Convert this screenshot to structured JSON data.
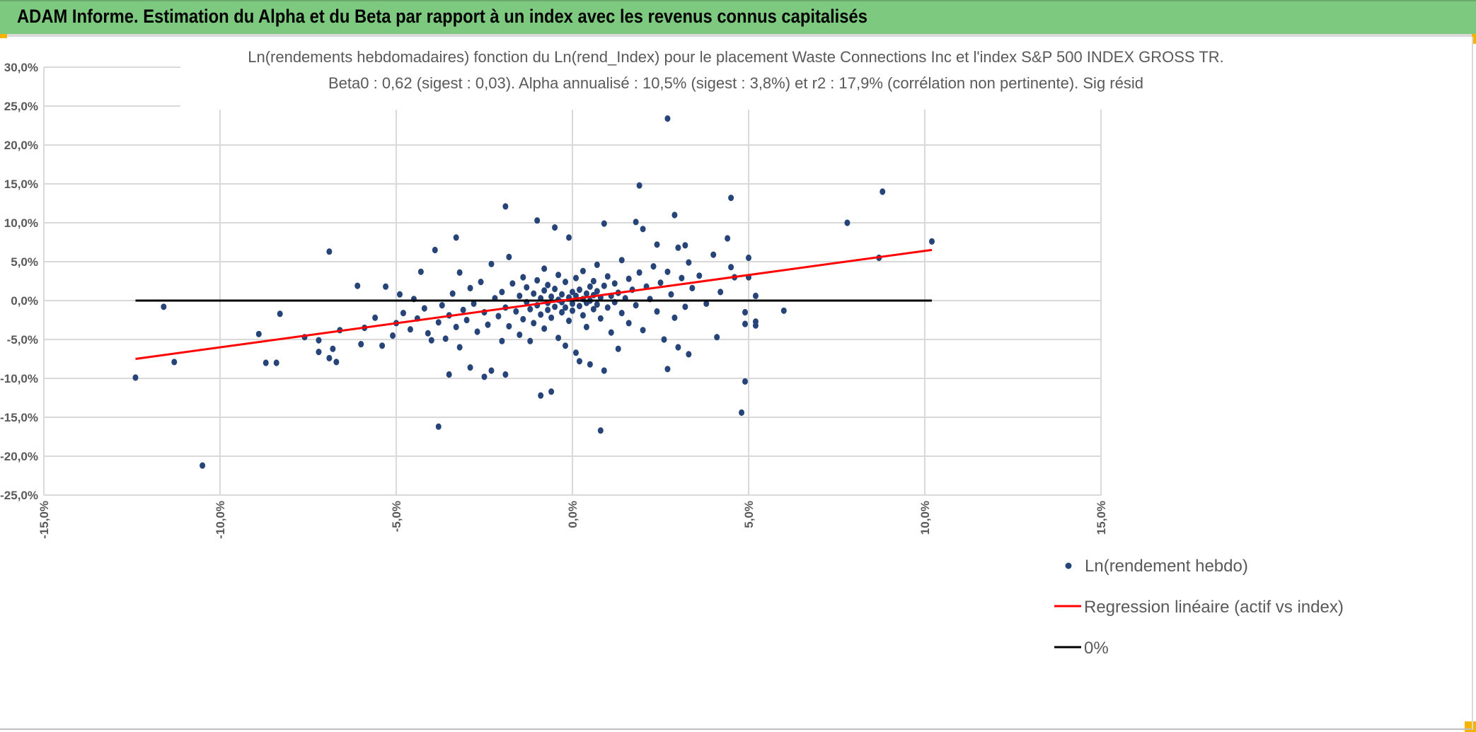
{
  "header": {
    "title": "ADAM Informe. Estimation du Alpha et du Beta par rapport à un index avec les revenus connus capitalisés"
  },
  "colors": {
    "header_bg": "#7dc97f",
    "points": "#264478",
    "regression": "#ff0000",
    "zero_line": "#000000",
    "grid": "#d9d9d9",
    "text": "#595959"
  },
  "chart_data": {
    "type": "scatter",
    "title_line1": "Ln(rendements hebdomadaires) fonction du Ln(rend_Index) pour le placement Waste Connections Inc et l'index S&P 500 INDEX GROSS TR.",
    "title_line2": "Beta0 : 0,62 (sigest : 0,03). Alpha annualisé : 10,5% (sigest : 3,8%) et r2 : 17,9% (corrélation non pertinente). Sig résid",
    "xlim": [
      -15,
      15
    ],
    "ylim": [
      -25,
      30
    ],
    "x_ticks": [
      -15,
      -10,
      -5,
      0,
      5,
      10,
      15
    ],
    "y_ticks": [
      30,
      25,
      20,
      15,
      10,
      5,
      0,
      -5,
      -10,
      -15,
      -20,
      -25
    ],
    "x_tick_labels": [
      "-15,0%",
      "-10,0%",
      "-5,0%",
      "0,0%",
      "5,0%",
      "10,0%",
      "15,0%"
    ],
    "y_tick_labels": [
      "30,0%",
      "25,0%",
      "20,0%",
      "15,0%",
      "10,0%",
      "5,0%",
      "0,0%",
      "-5,0%",
      "-10,0%",
      "-15,0%",
      "-20,0%",
      "-25,0%"
    ],
    "grid": true,
    "legend_position": "bottom-right",
    "legend": [
      "Ln(rendement hebdo)",
      "Regression linéaire (actif vs index)",
      "0%"
    ],
    "regression": {
      "beta": 0.62,
      "intercept": 0.19,
      "x_range": [
        -12.4,
        10.2
      ]
    },
    "zero_line": {
      "y": 0,
      "x_range": [
        -12.4,
        10.2
      ]
    },
    "series": [
      {
        "name": "Ln(rendement hebdo)",
        "points": [
          [
            -12.4,
            -9.9
          ],
          [
            -11.6,
            -0.8
          ],
          [
            -11.3,
            -7.9
          ],
          [
            -10.5,
            -21.2
          ],
          [
            -8.9,
            -4.3
          ],
          [
            -8.7,
            -8.0
          ],
          [
            -8.4,
            -8.0
          ],
          [
            -8.3,
            -1.7
          ],
          [
            -7.6,
            -4.7
          ],
          [
            -7.2,
            -5.1
          ],
          [
            -7.2,
            -6.6
          ],
          [
            -6.9,
            6.3
          ],
          [
            -6.9,
            -7.4
          ],
          [
            -6.8,
            -6.2
          ],
          [
            -6.7,
            -7.9
          ],
          [
            -6.6,
            -3.8
          ],
          [
            -6.1,
            1.9
          ],
          [
            -6.0,
            -5.6
          ],
          [
            -5.9,
            -3.5
          ],
          [
            -5.6,
            -2.2
          ],
          [
            -5.4,
            -5.8
          ],
          [
            -5.3,
            1.8
          ],
          [
            -5.1,
            -4.5
          ],
          [
            -5.0,
            -2.9
          ],
          [
            -4.9,
            0.8
          ],
          [
            -4.8,
            -1.6
          ],
          [
            -4.6,
            -3.7
          ],
          [
            -4.5,
            0.2
          ],
          [
            -4.4,
            -2.3
          ],
          [
            -4.3,
            3.7
          ],
          [
            -4.2,
            -1.0
          ],
          [
            -4.1,
            -4.2
          ],
          [
            -4.0,
            -5.1
          ],
          [
            -3.9,
            6.5
          ],
          [
            -3.8,
            -16.2
          ],
          [
            -3.8,
            -2.8
          ],
          [
            -3.7,
            -0.6
          ],
          [
            -3.6,
            -4.9
          ],
          [
            -3.5,
            -9.5
          ],
          [
            -3.5,
            -1.9
          ],
          [
            -3.4,
            0.9
          ],
          [
            -3.3,
            8.1
          ],
          [
            -3.3,
            -3.4
          ],
          [
            -3.2,
            3.6
          ],
          [
            -3.2,
            -6.0
          ],
          [
            -3.1,
            -1.2
          ],
          [
            -3.0,
            -2.5
          ],
          [
            -2.9,
            -8.6
          ],
          [
            -2.9,
            1.6
          ],
          [
            -2.8,
            -0.4
          ],
          [
            -2.7,
            -4.0
          ],
          [
            -2.6,
            2.4
          ],
          [
            -2.5,
            -9.8
          ],
          [
            -2.5,
            -1.5
          ],
          [
            -2.4,
            -3.1
          ],
          [
            -2.3,
            -9.0
          ],
          [
            -2.3,
            4.7
          ],
          [
            -2.2,
            0.3
          ],
          [
            -2.1,
            -2.0
          ],
          [
            -2.0,
            1.1
          ],
          [
            -2.0,
            -5.2
          ],
          [
            -1.9,
            12.1
          ],
          [
            -1.9,
            -9.5
          ],
          [
            -1.9,
            -0.9
          ],
          [
            -1.8,
            5.6
          ],
          [
            -1.8,
            -3.3
          ],
          [
            -1.7,
            2.2
          ],
          [
            -1.6,
            -1.4
          ],
          [
            -1.5,
            0.6
          ],
          [
            -1.5,
            -4.4
          ],
          [
            -1.4,
            3.0
          ],
          [
            -1.4,
            -2.4
          ],
          [
            -1.3,
            -0.2
          ],
          [
            -1.3,
            1.7
          ],
          [
            -1.2,
            -5.2
          ],
          [
            -1.2,
            -1.1
          ],
          [
            -1.1,
            0.9
          ],
          [
            -1.1,
            -2.9
          ],
          [
            -1.0,
            10.3
          ],
          [
            -1.0,
            2.6
          ],
          [
            -1.0,
            -0.6
          ],
          [
            -0.9,
            -12.2
          ],
          [
            -0.9,
            -1.8
          ],
          [
            -0.9,
            0.3
          ],
          [
            -0.8,
            4.1
          ],
          [
            -0.8,
            -3.6
          ],
          [
            -0.8,
            1.3
          ],
          [
            -0.7,
            -0.3
          ],
          [
            -0.7,
            -1.2
          ],
          [
            -0.7,
            2.0
          ],
          [
            -0.6,
            -11.7
          ],
          [
            -0.6,
            0.5
          ],
          [
            -0.6,
            -2.2
          ],
          [
            -0.5,
            9.4
          ],
          [
            -0.5,
            -0.8
          ],
          [
            -0.5,
            1.5
          ],
          [
            -0.4,
            -4.8
          ],
          [
            -0.4,
            0.1
          ],
          [
            -0.4,
            3.3
          ],
          [
            -0.3,
            -1.5
          ],
          [
            -0.3,
            0.8
          ],
          [
            -0.3,
            -0.2
          ],
          [
            -0.2,
            -5.8
          ],
          [
            -0.2,
            2.4
          ],
          [
            -0.2,
            -0.9
          ],
          [
            -0.1,
            8.1
          ],
          [
            -0.1,
            0.4
          ],
          [
            -0.1,
            -2.6
          ],
          [
            0.0,
            1.1
          ],
          [
            0.0,
            -0.4
          ],
          [
            0.0,
            -1.3
          ],
          [
            0.1,
            -6.7
          ],
          [
            0.1,
            0.6
          ],
          [
            0.1,
            2.9
          ],
          [
            0.2,
            -7.8
          ],
          [
            0.2,
            -0.7
          ],
          [
            0.2,
            1.4
          ],
          [
            0.3,
            0.2
          ],
          [
            0.3,
            -1.9
          ],
          [
            0.3,
            3.8
          ],
          [
            0.4,
            0.9
          ],
          [
            0.4,
            -0.3
          ],
          [
            0.4,
            -3.4
          ],
          [
            0.5,
            -8.2
          ],
          [
            0.5,
            1.8
          ],
          [
            0.5,
            0.0
          ],
          [
            0.6,
            -1.1
          ],
          [
            0.6,
            2.5
          ],
          [
            0.6,
            0.7
          ],
          [
            0.7,
            -0.5
          ],
          [
            0.7,
            4.6
          ],
          [
            0.7,
            1.2
          ],
          [
            0.8,
            -16.7
          ],
          [
            0.8,
            -2.3
          ],
          [
            0.8,
            0.4
          ],
          [
            0.9,
            9.9
          ],
          [
            0.9,
            -9.0
          ],
          [
            0.9,
            1.9
          ],
          [
            1.0,
            -0.9
          ],
          [
            1.0,
            3.1
          ],
          [
            1.1,
            0.6
          ],
          [
            1.1,
            -4.1
          ],
          [
            1.2,
            2.2
          ],
          [
            1.2,
            -0.2
          ],
          [
            1.3,
            -6.2
          ],
          [
            1.3,
            1.0
          ],
          [
            1.4,
            5.2
          ],
          [
            1.4,
            -1.6
          ],
          [
            1.5,
            0.3
          ],
          [
            1.6,
            2.8
          ],
          [
            1.6,
            -2.9
          ],
          [
            1.7,
            1.4
          ],
          [
            1.8,
            10.1
          ],
          [
            1.8,
            -0.6
          ],
          [
            1.9,
            14.8
          ],
          [
            1.9,
            3.6
          ],
          [
            2.0,
            9.2
          ],
          [
            2.0,
            -3.8
          ],
          [
            2.1,
            1.8
          ],
          [
            2.2,
            0.2
          ],
          [
            2.3,
            4.4
          ],
          [
            2.4,
            7.2
          ],
          [
            2.4,
            -1.4
          ],
          [
            2.5,
            2.3
          ],
          [
            2.6,
            -5.0
          ],
          [
            2.7,
            23.4
          ],
          [
            2.7,
            -8.8
          ],
          [
            2.7,
            3.7
          ],
          [
            2.8,
            0.8
          ],
          [
            2.9,
            11.0
          ],
          [
            2.9,
            -2.2
          ],
          [
            3.0,
            6.8
          ],
          [
            3.0,
            -6.0
          ],
          [
            3.1,
            2.9
          ],
          [
            3.2,
            7.1
          ],
          [
            3.2,
            -0.8
          ],
          [
            3.3,
            -6.9
          ],
          [
            3.3,
            4.9
          ],
          [
            3.4,
            1.6
          ],
          [
            3.6,
            3.2
          ],
          [
            3.8,
            -0.4
          ],
          [
            4.0,
            5.9
          ],
          [
            4.1,
            -4.7
          ],
          [
            4.2,
            1.1
          ],
          [
            4.4,
            8.0
          ],
          [
            4.5,
            13.2
          ],
          [
            4.5,
            4.3
          ],
          [
            4.6,
            3.0
          ],
          [
            4.8,
            -14.4
          ],
          [
            4.9,
            -10.4
          ],
          [
            4.9,
            -1.5
          ],
          [
            4.9,
            -3.0
          ],
          [
            5.0,
            5.5
          ],
          [
            5.0,
            3.0
          ],
          [
            5.2,
            0.6
          ],
          [
            5.2,
            -2.7
          ],
          [
            5.2,
            -3.2
          ],
          [
            6.0,
            -1.3
          ],
          [
            7.8,
            10.0
          ],
          [
            8.7,
            5.5
          ],
          [
            8.8,
            14.0
          ],
          [
            10.2,
            7.6
          ]
        ]
      }
    ]
  }
}
